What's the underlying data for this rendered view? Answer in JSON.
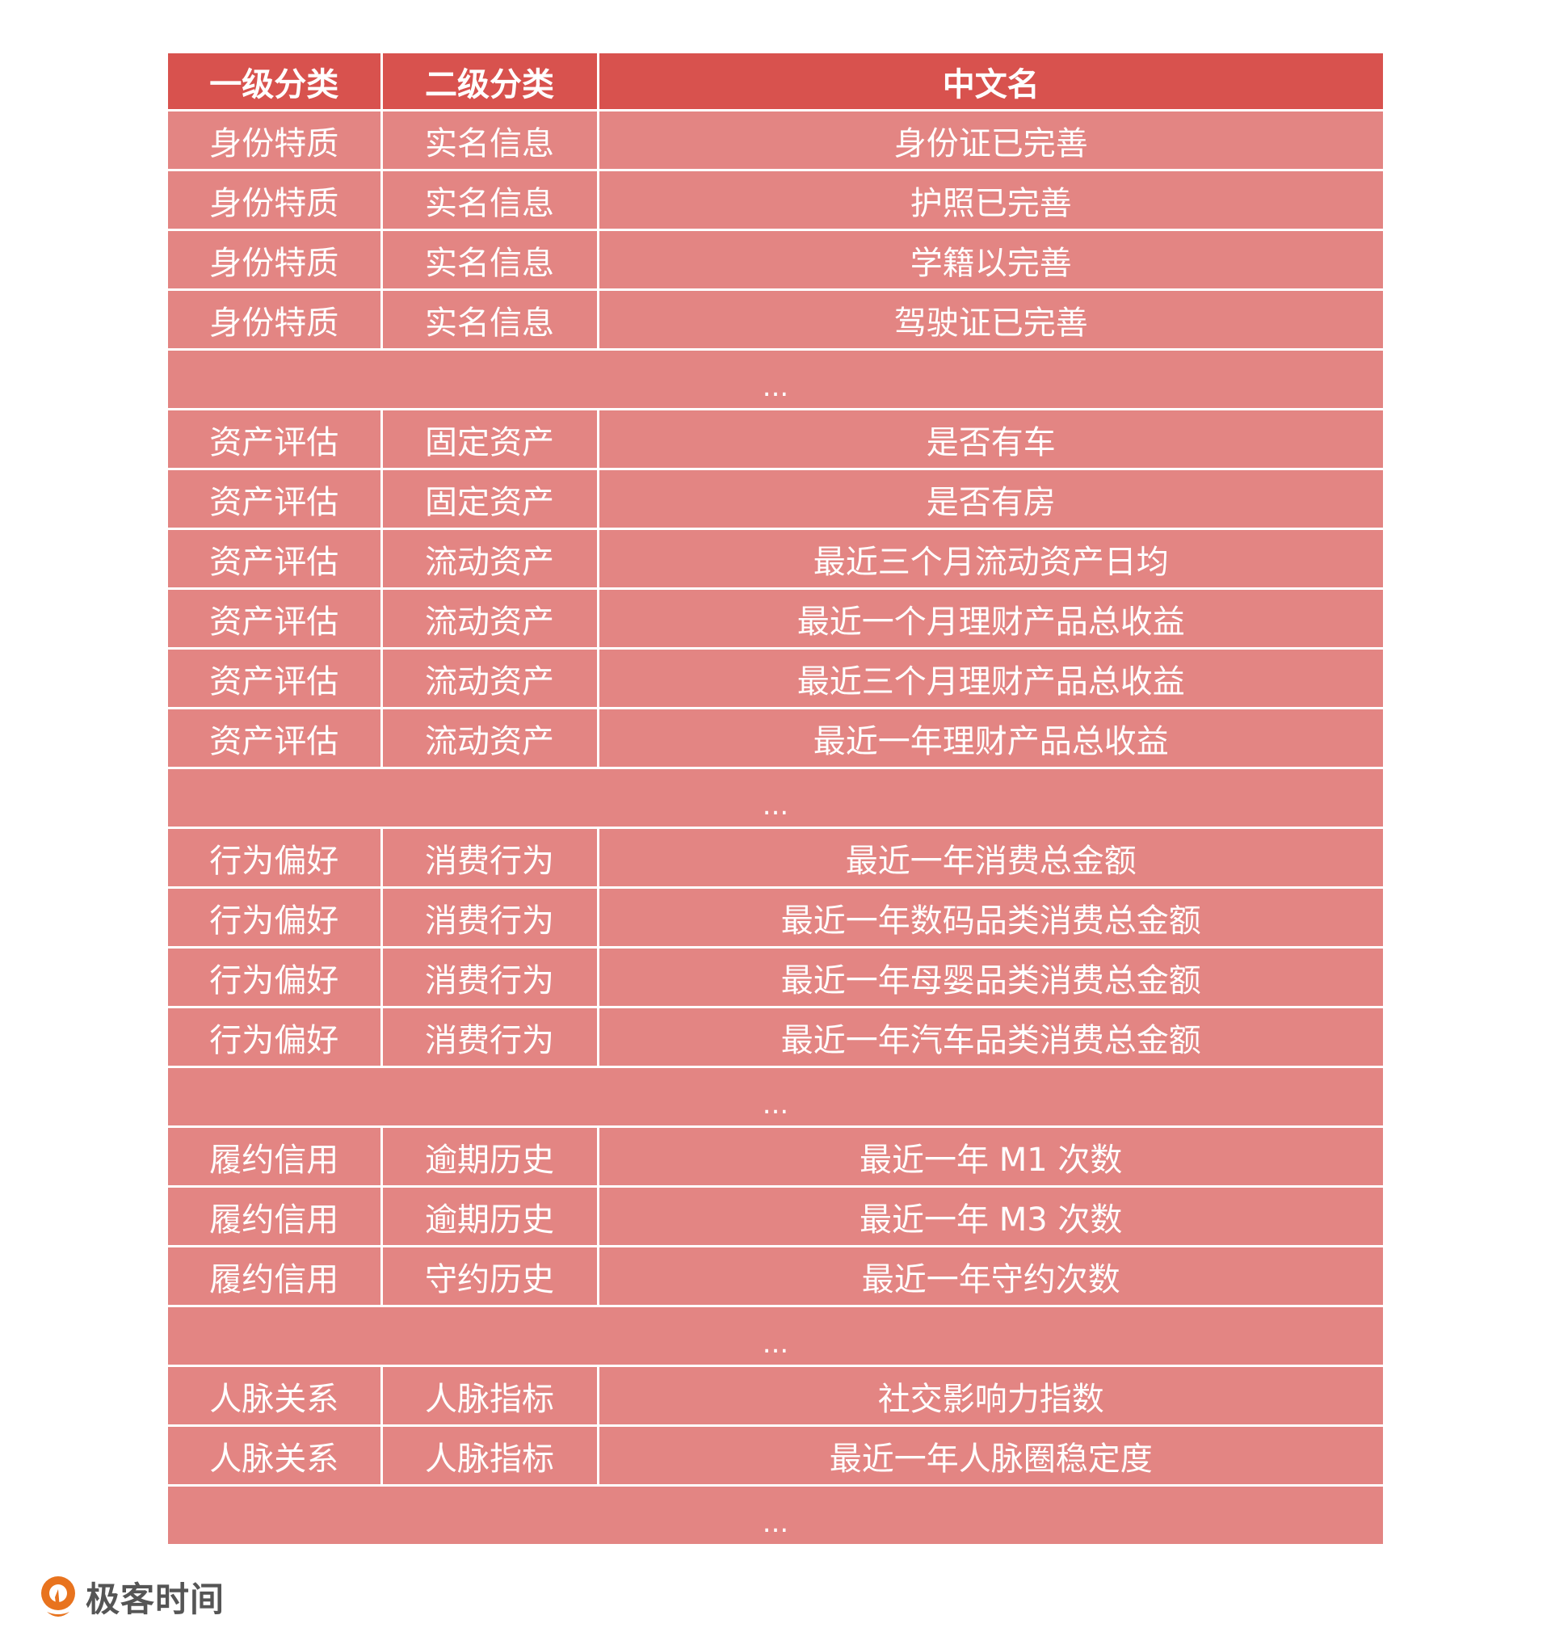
{
  "table": {
    "headers": [
      "一级分类",
      "二级分类",
      "中文名"
    ],
    "rows": [
      [
        "身份特质",
        "实名信息",
        "身份证已完善"
      ],
      [
        "身份特质",
        "实名信息",
        "护照已完善"
      ],
      [
        "身份特质",
        "实名信息",
        "学籍以完善"
      ],
      [
        "身份特质",
        "实名信息",
        "驾驶证已完善"
      ],
      [
        "..."
      ],
      [
        "资产评估",
        "固定资产",
        "是否有车"
      ],
      [
        "资产评估",
        "固定资产",
        "是否有房"
      ],
      [
        "资产评估",
        "流动资产",
        "最近三个月流动资产日均"
      ],
      [
        "资产评估",
        "流动资产",
        "最近一个月理财产品总收益"
      ],
      [
        "资产评估",
        "流动资产",
        "最近三个月理财产品总收益"
      ],
      [
        "资产评估",
        "流动资产",
        "最近一年理财产品总收益"
      ],
      [
        "..."
      ],
      [
        "行为偏好",
        "消费行为",
        "最近一年消费总金额"
      ],
      [
        "行为偏好",
        "消费行为",
        "最近一年数码品类消费总金额"
      ],
      [
        "行为偏好",
        "消费行为",
        "最近一年母婴品类消费总金额"
      ],
      [
        "行为偏好",
        "消费行为",
        "最近一年汽车品类消费总金额"
      ],
      [
        "..."
      ],
      [
        "履约信用",
        "逾期历史",
        "最近一年 M1 次数"
      ],
      [
        "履约信用",
        "逾期历史",
        "最近一年 M3 次数"
      ],
      [
        "履约信用",
        "守约历史",
        "最近一年守约次数"
      ],
      [
        "..."
      ],
      [
        "人脉关系",
        "人脉指标",
        "社交影响力指数"
      ],
      [
        "人脉关系",
        "人脉指标",
        "最近一年人脉圈稳定度"
      ],
      [
        "..."
      ]
    ]
  },
  "colors": {
    "header": "#D8524E",
    "row": "#E38583",
    "logo": "#E8731E"
  },
  "logo": {
    "text": "极客时间",
    "icon": "geektime-logo-icon"
  }
}
